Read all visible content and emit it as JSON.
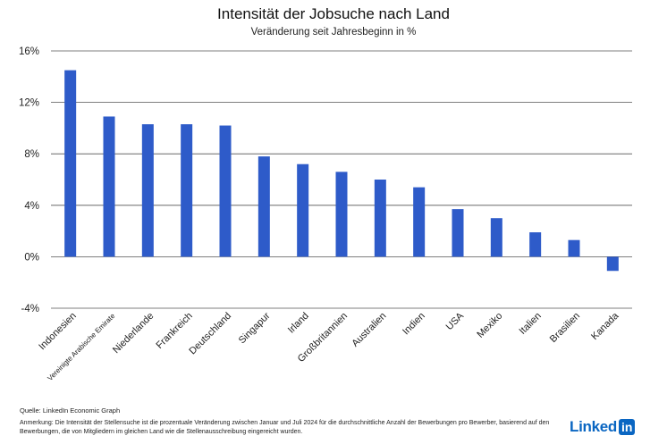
{
  "chart_data": {
    "type": "bar",
    "title": "Intensität der Jobsuche nach Land",
    "subtitle": "Veränderung seit Jahresbeginn in %",
    "categories": [
      "Indonesien",
      "Vereinigte Arabische Emirate",
      "Niederlande",
      "Frankreich",
      "Deutschland",
      "Singapur",
      "Irland",
      "Großbritannien",
      "Australien",
      "Indien",
      "USA",
      "Mexiko",
      "Italien",
      "Brasilien",
      "Kanada"
    ],
    "values": [
      14.5,
      10.9,
      10.3,
      10.3,
      10.2,
      7.8,
      7.2,
      6.6,
      6.0,
      5.4,
      3.7,
      3.0,
      1.9,
      1.3,
      -1.1
    ],
    "ylim": [
      -4,
      16
    ],
    "yticks": [
      -4,
      0,
      4,
      8,
      12,
      16
    ],
    "ytick_labels": [
      "-4%",
      "0%",
      "4%",
      "8%",
      "12%",
      "16%"
    ],
    "bar_color": "#2e5bc9",
    "grid": true,
    "legend": "none"
  },
  "footer": {
    "source": "Quelle: LinkedIn Economic Graph",
    "note": "Anmerkung: Die Intensität der Stellensuche ist die prozentuale Veränderung zwischen Januar und Juli 2024 für die durchschnittliche Anzahl der Bewerbungen pro Bewerber, basierend auf den Bewerbungen, die von Mitgliedern im gleichen Land wie die Stellenausschreibung eingereicht wurden."
  },
  "logo": {
    "text": "Linked",
    "badge": "in",
    "color": "#0a66c2"
  }
}
